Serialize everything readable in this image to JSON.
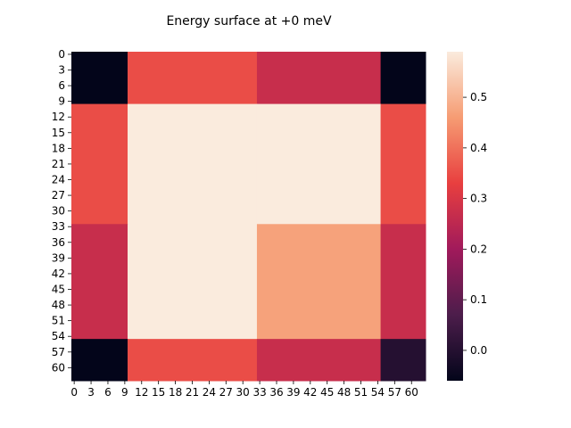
{
  "chart_data": {
    "type": "heatmap",
    "title": "Energy surface at +0 meV",
    "xlabel": "",
    "ylabel": "",
    "x_ticks": [
      "0",
      "3",
      "6",
      "9",
      "12",
      "15",
      "18",
      "21",
      "24",
      "27",
      "30",
      "33",
      "36",
      "39",
      "42",
      "45",
      "48",
      "51",
      "54",
      "57",
      "60"
    ],
    "y_ticks": [
      "0",
      "3",
      "6",
      "9",
      "12",
      "15",
      "18",
      "21",
      "24",
      "27",
      "30",
      "33",
      "36",
      "39",
      "42",
      "45",
      "48",
      "51",
      "54",
      "57",
      "60"
    ],
    "block_edges": [
      0,
      10,
      33,
      55,
      63
    ],
    "blocks": [
      [
        -0.06,
        0.35,
        0.27,
        -0.06
      ],
      [
        0.35,
        0.59,
        0.59,
        0.35
      ],
      [
        0.27,
        0.59,
        0.47,
        0.27
      ],
      [
        -0.06,
        0.35,
        0.27,
        0.0
      ]
    ],
    "colorbar": {
      "min": -0.06,
      "max": 0.59,
      "ticks": [
        "0.0",
        "0.1",
        "0.2",
        "0.3",
        "0.4",
        "0.5"
      ],
      "tick_values": [
        0.0,
        0.1,
        0.2,
        0.3,
        0.4,
        0.5
      ]
    },
    "colormap": "rocket",
    "colormap_stops": [
      "#03051a",
      "#4c1d4b",
      "#a11a5b",
      "#e83f3f",
      "#f69c73",
      "#faebdd"
    ]
  }
}
